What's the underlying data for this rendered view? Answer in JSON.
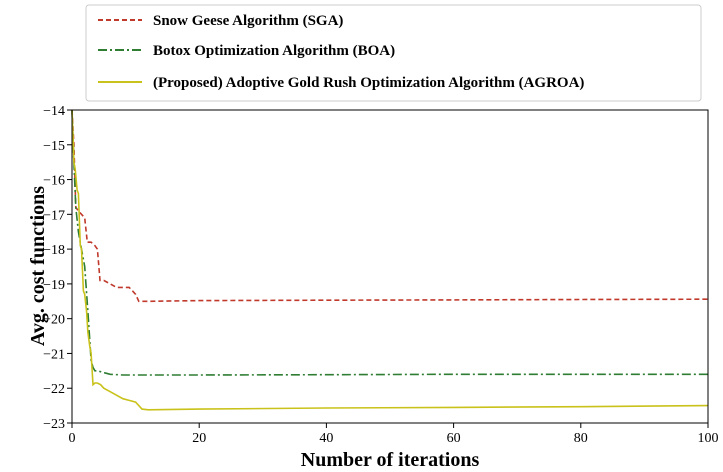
{
  "chart_data": {
    "type": "line",
    "title": "",
    "xlabel": "Number of iterations",
    "ylabel": "Avg. cost functions",
    "xlim": [
      0,
      100
    ],
    "ylim": [
      -23,
      -14
    ],
    "xticks": [
      0,
      20,
      40,
      60,
      80,
      100
    ],
    "yticks": [
      -23,
      -22,
      -21,
      -20,
      -19,
      -18,
      -17,
      -16,
      -15,
      -14
    ],
    "legend_position": "top",
    "grid": false,
    "series": [
      {
        "name": "Snow Geese Algorithm (SGA)",
        "color": "#c0392b",
        "style": "dashed",
        "x": [
          0,
          0.3,
          0.6,
          1.0,
          1.5,
          2.0,
          2.4,
          3.0,
          3.6,
          4.0,
          4.4,
          5.0,
          6.0,
          7.0,
          8.0,
          9.0,
          9.5,
          10.0,
          10.5,
          12,
          20,
          40,
          60,
          80,
          100
        ],
        "y": [
          -14.0,
          -15.0,
          -16.8,
          -16.9,
          -17.0,
          -17.1,
          -17.8,
          -17.8,
          -17.9,
          -18.0,
          -18.9,
          -18.9,
          -19.0,
          -19.1,
          -19.1,
          -19.1,
          -19.2,
          -19.3,
          -19.5,
          -19.5,
          -19.48,
          -19.47,
          -19.46,
          -19.45,
          -19.44
        ]
      },
      {
        "name": "Botox Optimization Algorithm (BOA)",
        "color": "#2e7d32",
        "style": "dashdot",
        "x": [
          0,
          0.3,
          0.6,
          1.0,
          1.5,
          2.0,
          2.5,
          3.0,
          3.3,
          3.6,
          4.0,
          5.0,
          6.0,
          8.0,
          10,
          20,
          40,
          60,
          80,
          100
        ],
        "y": [
          -14.0,
          -15.5,
          -16.8,
          -17.5,
          -18.0,
          -18.5,
          -19.8,
          -21.2,
          -21.4,
          -21.5,
          -21.5,
          -21.55,
          -21.6,
          -21.62,
          -21.62,
          -21.62,
          -21.61,
          -21.6,
          -21.6,
          -21.6
        ]
      },
      {
        "name": "(Proposed) Adoptive Gold Rush Optimization Algorithm (AGROA)",
        "color": "#c9c21a",
        "style": "solid",
        "x": [
          0,
          0.3,
          0.5,
          0.8,
          1.0,
          1.3,
          1.5,
          1.8,
          2.0,
          2.3,
          2.5,
          2.8,
          3.0,
          3.3,
          3.6,
          4.0,
          4.5,
          5.0,
          6.0,
          7.0,
          8.0,
          9.0,
          10.0,
          11.0,
          12.0,
          20,
          40,
          60,
          80,
          100
        ],
        "y": [
          -14.0,
          -15.5,
          -15.7,
          -16.3,
          -16.4,
          -17.9,
          -18.0,
          -19.2,
          -19.3,
          -19.8,
          -20.4,
          -20.8,
          -21.0,
          -21.9,
          -21.85,
          -21.85,
          -21.9,
          -22.0,
          -22.1,
          -22.2,
          -22.3,
          -22.35,
          -22.4,
          -22.6,
          -22.62,
          -22.6,
          -22.57,
          -22.55,
          -22.53,
          -22.5
        ]
      }
    ]
  }
}
